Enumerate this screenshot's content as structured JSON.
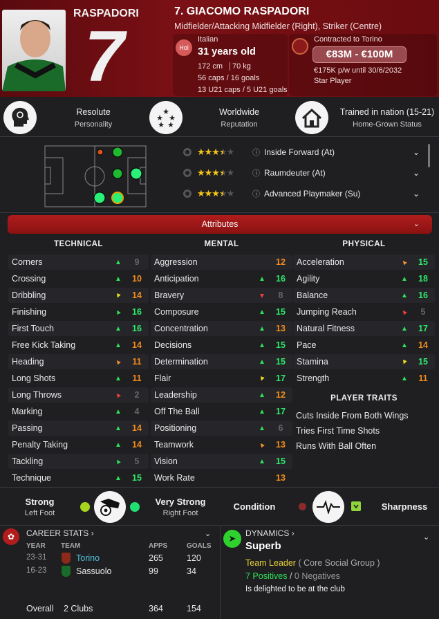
{
  "header": {
    "short_name": "RASPADORI",
    "shirt_number": "7",
    "full_name": "7. GIACOMO RASPADORI",
    "positions": "Midfielder/Attacking Midfielder (Right), Striker (Centre)"
  },
  "nationality": {
    "badge": "Hol",
    "nation": "Italian",
    "age": "31 years old",
    "height": "172 cm",
    "weight": "70 kg",
    "caps": "56 caps / 16 goals",
    "u21": "13 U21 caps / 5 U21 goals"
  },
  "contract": {
    "club": "Contracted to Torino",
    "value": "€83M - €100M",
    "wage": "€175K p/w until 30/6/2032",
    "status": "Star Player"
  },
  "profile": [
    {
      "title": "Resolute",
      "subtitle": "Personality",
      "icon": "head-icon"
    },
    {
      "title": "Worldwide",
      "subtitle": "Reputation",
      "icon": "stars-icon"
    },
    {
      "title": "Trained in nation (15-21)",
      "subtitle": "Home-Grown Status",
      "icon": "home-icon"
    }
  ],
  "roles": [
    {
      "name": "Inside Forward (At)",
      "stars": 3.5
    },
    {
      "name": "Raumdeuter (At)",
      "stars": 3.5
    },
    {
      "name": "Advanced Playmaker (Su)",
      "stars": 3.5
    }
  ],
  "attributes_label": "Attributes",
  "columns": {
    "technical": "TECHNICAL",
    "mental": "MENTAL",
    "physical": "PHYSICAL",
    "traits": "PLAYER TRAITS"
  },
  "technical": [
    {
      "name": "Corners",
      "value": "9",
      "trend": "green-up"
    },
    {
      "name": "Crossing",
      "value": "10",
      "trend": "green-up"
    },
    {
      "name": "Dribbling",
      "value": "14",
      "trend": "yellow-down"
    },
    {
      "name": "Finishing",
      "value": "16",
      "trend": "green-left"
    },
    {
      "name": "First Touch",
      "value": "16",
      "trend": "green-up"
    },
    {
      "name": "Free Kick Taking",
      "value": "14",
      "trend": "green-up"
    },
    {
      "name": "Heading",
      "value": "11",
      "trend": "orange-up"
    },
    {
      "name": "Long Shots",
      "value": "11",
      "trend": "green-up"
    },
    {
      "name": "Long Throws",
      "value": "2",
      "trend": "red-left"
    },
    {
      "name": "Marking",
      "value": "4",
      "trend": "green-up"
    },
    {
      "name": "Passing",
      "value": "14",
      "trend": "green-up"
    },
    {
      "name": "Penalty Taking",
      "value": "14",
      "trend": "green-up"
    },
    {
      "name": "Tackling",
      "value": "5",
      "trend": "green-left"
    },
    {
      "name": "Technique",
      "value": "15",
      "trend": "green-up"
    }
  ],
  "mental": [
    {
      "name": "Aggression",
      "value": "12",
      "trend": ""
    },
    {
      "name": "Anticipation",
      "value": "16",
      "trend": "green-up"
    },
    {
      "name": "Bravery",
      "value": "8",
      "trend": "red-down"
    },
    {
      "name": "Composure",
      "value": "15",
      "trend": "green-up"
    },
    {
      "name": "Concentration",
      "value": "13",
      "trend": "green-up"
    },
    {
      "name": "Decisions",
      "value": "15",
      "trend": "green-up"
    },
    {
      "name": "Determination",
      "value": "15",
      "trend": "green-up"
    },
    {
      "name": "Flair",
      "value": "17",
      "trend": "yellow-down"
    },
    {
      "name": "Leadership",
      "value": "12",
      "trend": "green-up"
    },
    {
      "name": "Off The Ball",
      "value": "17",
      "trend": "green-up"
    },
    {
      "name": "Positioning",
      "value": "6",
      "trend": "green-up"
    },
    {
      "name": "Teamwork",
      "value": "13",
      "trend": "orange-up"
    },
    {
      "name": "Vision",
      "value": "15",
      "trend": "green-up"
    },
    {
      "name": "Work Rate",
      "value": "13",
      "trend": ""
    }
  ],
  "physical": [
    {
      "name": "Acceleration",
      "value": "15",
      "trend": "orange-up"
    },
    {
      "name": "Agility",
      "value": "18",
      "trend": "green-up"
    },
    {
      "name": "Balance",
      "value": "16",
      "trend": "green-up"
    },
    {
      "name": "Jumping Reach",
      "value": "5",
      "trend": "red-left"
    },
    {
      "name": "Natural Fitness",
      "value": "17",
      "trend": "green-up"
    },
    {
      "name": "Pace",
      "value": "14",
      "trend": "green-up"
    },
    {
      "name": "Stamina",
      "value": "15",
      "trend": "yellow-down"
    },
    {
      "name": "Strength",
      "value": "11",
      "trend": "green-up"
    }
  ],
  "traits": [
    "Cuts Inside From Both Wings",
    "Tries First Time Shots",
    "Runs With Ball Often"
  ],
  "feet": {
    "left_strength": "Strong",
    "left_label": "Left Foot",
    "right_strength": "Very Strong",
    "right_label": "Right Foot",
    "condition": "Condition",
    "sharpness": "Sharpness"
  },
  "career": {
    "title": "CAREER STATS",
    "headers": [
      "YEAR",
      "TEAM",
      "APPS",
      "GOALS"
    ],
    "rows": [
      {
        "year": "23-31",
        "team": "Torino",
        "apps": "265",
        "goals": "120"
      },
      {
        "year": "16-23",
        "team": "Sassuolo",
        "apps": "99",
        "goals": "34"
      }
    ],
    "overall_label": "Overall",
    "overall_clubs": "2 Clubs",
    "overall_apps": "364",
    "overall_goals": "154"
  },
  "dynamics": {
    "title": "DYNAMICS",
    "level": "Superb",
    "role": "Team Leader",
    "group": "( Core Social Group )",
    "positives": "7 Positives",
    "negatives": "0 Negatives",
    "happiness": "Is delighted to be at the club"
  },
  "colors": {
    "header": "#7a1015",
    "attr_bar": "#a01818",
    "high": "#2ee86a",
    "mid": "#f08c1a",
    "low": "#666666"
  }
}
